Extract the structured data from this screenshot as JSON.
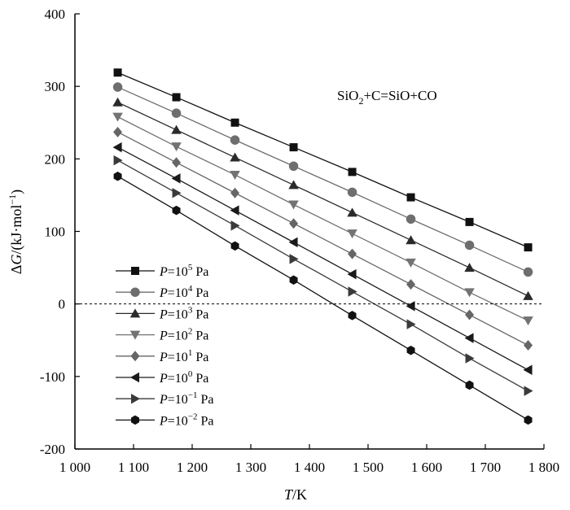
{
  "chart_data": {
    "type": "line",
    "annotation": "SiO2+C=SiO+CO",
    "xlabel": "T/K",
    "ylabel": "ΔG/(kJ·mol−1)",
    "xlim": [
      1000,
      1800
    ],
    "ylim": [
      -200,
      400
    ],
    "xticks": [
      1000,
      1100,
      1200,
      1300,
      1400,
      1500,
      1600,
      1700,
      1800
    ],
    "xtick_labels": [
      "1 000",
      "1 100",
      "1 200",
      "1 300",
      "1 400",
      "1 500",
      "1 600",
      "1 700",
      "1 800"
    ],
    "yticks": [
      400,
      300,
      200,
      100,
      0,
      -100,
      -200
    ],
    "ytick_labels": [
      "400",
      "300",
      "200",
      "100",
      "0",
      "-100",
      "-200"
    ],
    "zero_line": "dashed",
    "grid": false,
    "legend_position": "bottom-left",
    "x": [
      1073,
      1173,
      1273,
      1373,
      1473,
      1573,
      1673,
      1773
    ],
    "series": [
      {
        "name": "P=10^5 Pa",
        "marker": "square",
        "color": "#111111",
        "values": [
          319,
          285,
          250,
          216,
          182,
          147,
          113,
          78
        ]
      },
      {
        "name": "P=10^4 Pa",
        "marker": "circle",
        "color": "#6e6e6e",
        "values": [
          299,
          263,
          226,
          190,
          154,
          117,
          81,
          44
        ]
      },
      {
        "name": "P=10^3 Pa",
        "marker": "triangle-up",
        "color": "#2a2a2a",
        "values": [
          278,
          240,
          202,
          164,
          126,
          88,
          50,
          11
        ]
      },
      {
        "name": "P=10^2 Pa",
        "marker": "triangle-down",
        "color": "#737373",
        "values": [
          258,
          217,
          178,
          137,
          97,
          57,
          16,
          -23
        ]
      },
      {
        "name": "P=10^1 Pa",
        "marker": "diamond",
        "color": "#666666",
        "values": [
          237,
          195,
          153,
          111,
          69,
          27,
          -15,
          -57
        ]
      },
      {
        "name": "P=10^0 Pa",
        "marker": "triangle-left",
        "color": "#1a1a1a",
        "values": [
          216,
          173,
          129,
          85,
          41,
          -3,
          -47,
          -91
        ]
      },
      {
        "name": "P=10^-1 Pa",
        "marker": "triangle-right",
        "color": "#3a3a3a",
        "values": [
          198,
          153,
          108,
          62,
          17,
          -28,
          -75,
          -120
        ]
      },
      {
        "name": "P=10^-2 Pa",
        "marker": "hexagon",
        "color": "#111111",
        "values": [
          176,
          129,
          80,
          33,
          -16,
          -64,
          -112,
          -160
        ]
      }
    ]
  }
}
